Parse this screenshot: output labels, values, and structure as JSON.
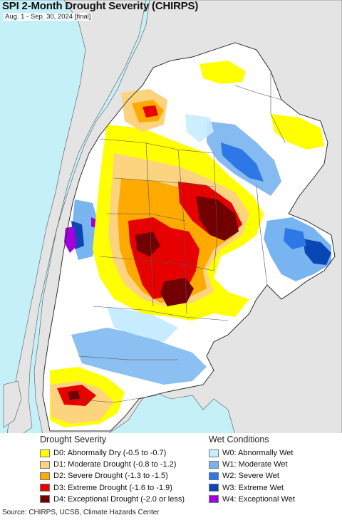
{
  "title": "SPI 2-Month Drought Severity (CHIRPS)",
  "subtitle": "Aug. 1 - Sep. 30, 2024 [final]",
  "colors": {
    "ocean": "#c6f0f8",
    "land_outside": "#e4e4e4",
    "d0": "#ffff00",
    "d1": "#fcd37f",
    "d2": "#ffaa00",
    "d3": "#e60000",
    "d4": "#730000",
    "w0": "#c8ecff",
    "w1": "#78b4f0",
    "w2": "#2d78e6",
    "w3": "#0a46b4",
    "w4": "#a000dc"
  },
  "legend": {
    "drought": {
      "heading": "Drought Severity",
      "items": [
        {
          "label": "D0: Abnormally Dry (-0.5 to -0.7)",
          "color": "#ffff00"
        },
        {
          "label": "D1: Moderate Drought (-0.8 to -1.2)",
          "color": "#fcd37f"
        },
        {
          "label": "D2: Severe Drought (-1.3 to -1.5)",
          "color": "#ffaa00"
        },
        {
          "label": "D3: Extreme Drought (-1.6 to -1.9)",
          "color": "#e60000"
        },
        {
          "label": "D4: Exceptional Drought (-2.0 or less)",
          "color": "#730000"
        }
      ]
    },
    "wet": {
      "heading": "Wet Conditions",
      "items": [
        {
          "label": "W0: Abnormally Wet",
          "color": "#c8ecff"
        },
        {
          "label": "W1: Moderate Wet",
          "color": "#78b4f0"
        },
        {
          "label": "W2: Severe Wet",
          "color": "#2d78e6"
        },
        {
          "label": "W3: Extreme Wet",
          "color": "#0a46b4"
        },
        {
          "label": "W4: Exceptional Wet",
          "color": "#a000dc"
        }
      ]
    }
  },
  "source": "Source: CHIRPS, UCSB, Climate Hazards Center"
}
